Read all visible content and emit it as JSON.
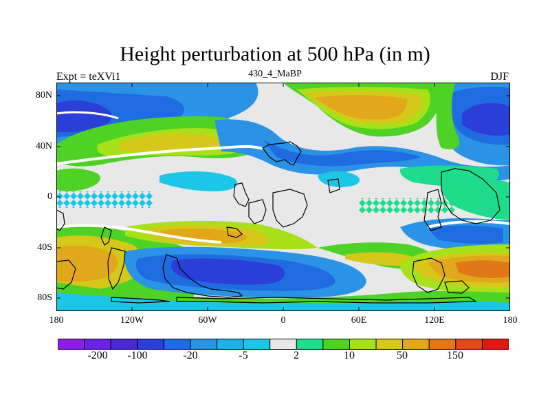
{
  "title": "Height perturbation at 500 hPa (in m)",
  "experiment_label": "Expt = teXVi1",
  "period_label": "430_4_MaBP",
  "season_label": "DJF",
  "y_axis": {
    "ticks": [
      "80N",
      "40N",
      "0",
      "40S",
      "80S"
    ]
  },
  "x_axis": {
    "ticks": [
      "180",
      "120W",
      "60W",
      "0",
      "60E",
      "120E",
      "180"
    ]
  },
  "colorbar": {
    "colors": [
      "#8c1ee6",
      "#6a23e6",
      "#4b28d6",
      "#2b3ed8",
      "#1f6be0",
      "#2a93e6",
      "#1fb0e8",
      "#1cc6e6",
      "#e8e8e8",
      "#1fdc8c",
      "#4fd226",
      "#a8e01a",
      "#d6c81a",
      "#e0a81a",
      "#e0781a",
      "#e04a1a",
      "#e01a10"
    ],
    "labels": [
      "-200",
      "-100",
      "-20",
      "-5",
      "2",
      "10",
      "50",
      "150"
    ]
  },
  "map_data": {
    "field": "Height perturbation at 500 hPa",
    "units": "m",
    "lon_range": [
      -180,
      180
    ],
    "lat_range": [
      -90,
      90
    ]
  }
}
